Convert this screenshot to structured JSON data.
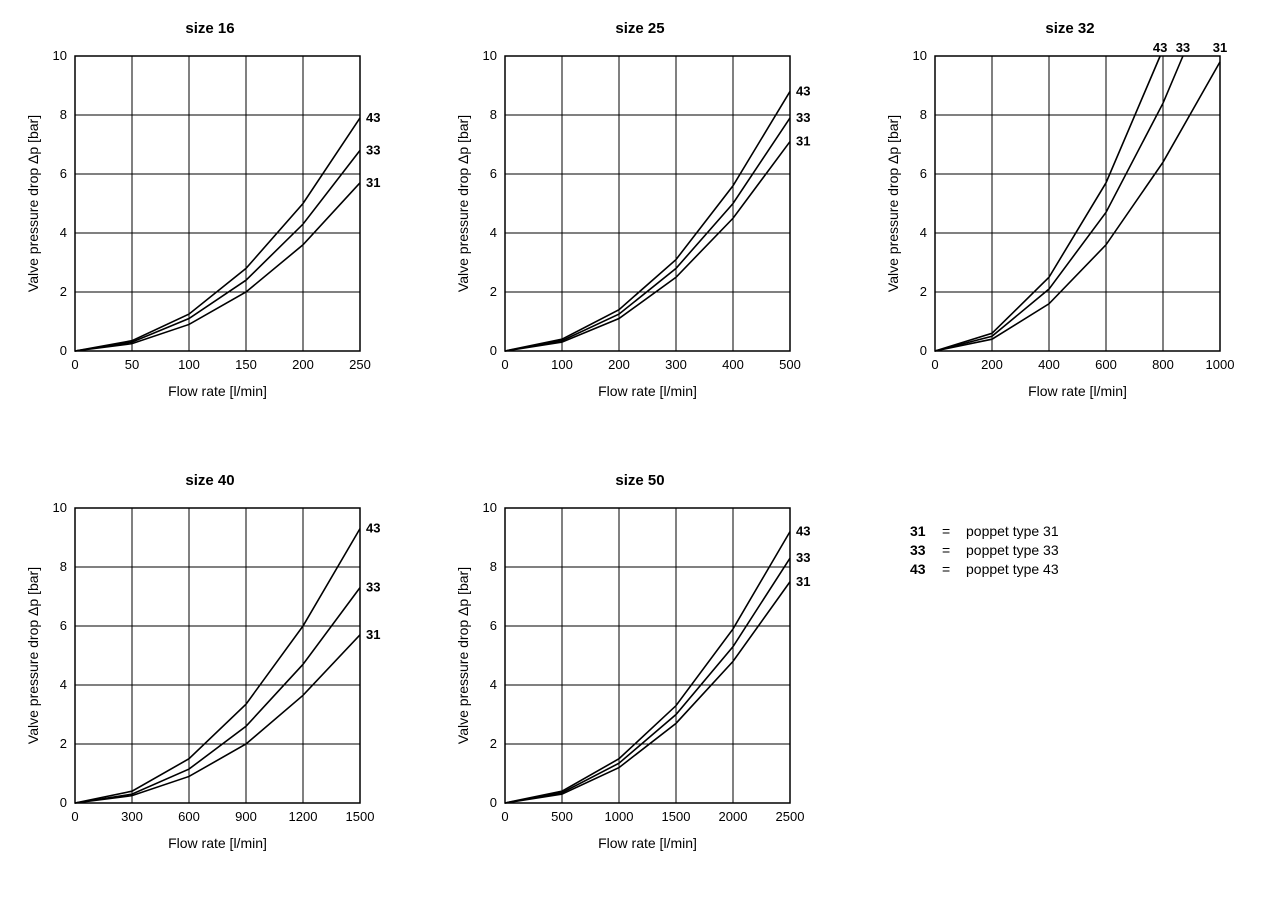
{
  "global": {
    "ylabel": "Valve pressure drop Δp [bar]",
    "xlabel": "Flow rate [l/min]",
    "ylim": [
      0,
      10
    ],
    "ytick_step": 2,
    "background_color": "#ffffff",
    "grid_color": "#000000",
    "curve_color": "#000000",
    "label_fontsize": 14,
    "tick_fontsize": 13,
    "title_fontsize": 15,
    "curve_width": 1.6,
    "series_label_fontweight": "bold"
  },
  "charts": [
    {
      "id": "size16",
      "title": "size 16",
      "xlim": [
        0,
        250
      ],
      "xtick_step": 50,
      "series": [
        {
          "name": "43",
          "label_pos": "end",
          "xmax_y": 7.9,
          "data": [
            [
              0,
              0
            ],
            [
              50,
              0.35
            ],
            [
              100,
              1.25
            ],
            [
              150,
              2.8
            ],
            [
              200,
              5.0
            ],
            [
              250,
              7.9
            ]
          ]
        },
        {
          "name": "33",
          "label_pos": "end",
          "xmax_y": 6.8,
          "data": [
            [
              0,
              0
            ],
            [
              50,
              0.3
            ],
            [
              100,
              1.1
            ],
            [
              150,
              2.4
            ],
            [
              200,
              4.3
            ],
            [
              250,
              6.8
            ]
          ]
        },
        {
          "name": "31",
          "label_pos": "end",
          "xmax_y": 5.7,
          "data": [
            [
              0,
              0
            ],
            [
              50,
              0.25
            ],
            [
              100,
              0.9
            ],
            [
              150,
              2.0
            ],
            [
              200,
              3.6
            ],
            [
              250,
              5.7
            ]
          ]
        }
      ]
    },
    {
      "id": "size25",
      "title": "size 25",
      "xlim": [
        0,
        500
      ],
      "xtick_step": 100,
      "series": [
        {
          "name": "43",
          "label_pos": "end",
          "xmax_y": 8.8,
          "data": [
            [
              0,
              0
            ],
            [
              100,
              0.4
            ],
            [
              200,
              1.4
            ],
            [
              300,
              3.1
            ],
            [
              400,
              5.6
            ],
            [
              500,
              8.8
            ]
          ]
        },
        {
          "name": "33",
          "label_pos": "end",
          "xmax_y": 7.9,
          "data": [
            [
              0,
              0
            ],
            [
              100,
              0.35
            ],
            [
              200,
              1.25
            ],
            [
              300,
              2.8
            ],
            [
              400,
              5.0
            ],
            [
              500,
              7.9
            ]
          ]
        },
        {
          "name": "31",
          "label_pos": "end",
          "xmax_y": 7.1,
          "data": [
            [
              0,
              0
            ],
            [
              100,
              0.3
            ],
            [
              200,
              1.1
            ],
            [
              300,
              2.5
            ],
            [
              400,
              4.5
            ],
            [
              500,
              7.1
            ]
          ]
        }
      ]
    },
    {
      "id": "size32",
      "title": "size 32",
      "xlim": [
        0,
        1000
      ],
      "xtick_step": 200,
      "top_labels": true,
      "series": [
        {
          "name": "43",
          "label_pos": "top",
          "x_at_ymax": 790,
          "data": [
            [
              0,
              0
            ],
            [
              200,
              0.6
            ],
            [
              400,
              2.5
            ],
            [
              600,
              5.7
            ],
            [
              790,
              10
            ]
          ]
        },
        {
          "name": "33",
          "label_pos": "top",
          "x_at_ymax": 870,
          "data": [
            [
              0,
              0
            ],
            [
              200,
              0.5
            ],
            [
              400,
              2.1
            ],
            [
              600,
              4.7
            ],
            [
              800,
              8.4
            ],
            [
              870,
              10
            ]
          ]
        },
        {
          "name": "31",
          "label_pos": "top",
          "x_at_ymax": 1000,
          "data": [
            [
              0,
              0
            ],
            [
              200,
              0.4
            ],
            [
              400,
              1.6
            ],
            [
              600,
              3.6
            ],
            [
              800,
              6.4
            ],
            [
              1000,
              9.8
            ]
          ]
        }
      ]
    },
    {
      "id": "size40",
      "title": "size 40",
      "xlim": [
        0,
        1500
      ],
      "xtick_step": 300,
      "series": [
        {
          "name": "43",
          "label_pos": "end",
          "xmax_y": 9.3,
          "data": [
            [
              0,
              0
            ],
            [
              300,
              0.4
            ],
            [
              600,
              1.5
            ],
            [
              900,
              3.35
            ],
            [
              1200,
              6.0
            ],
            [
              1500,
              9.3
            ]
          ]
        },
        {
          "name": "33",
          "label_pos": "end",
          "xmax_y": 7.3,
          "data": [
            [
              0,
              0
            ],
            [
              300,
              0.3
            ],
            [
              600,
              1.15
            ],
            [
              900,
              2.6
            ],
            [
              1200,
              4.7
            ],
            [
              1500,
              7.3
            ]
          ]
        },
        {
          "name": "31",
          "label_pos": "end",
          "xmax_y": 5.7,
          "data": [
            [
              0,
              0
            ],
            [
              300,
              0.25
            ],
            [
              600,
              0.9
            ],
            [
              900,
              2.0
            ],
            [
              1200,
              3.65
            ],
            [
              1500,
              5.7
            ]
          ]
        }
      ]
    },
    {
      "id": "size50",
      "title": "size 50",
      "xlim": [
        0,
        2500
      ],
      "xtick_step": 500,
      "series": [
        {
          "name": "43",
          "label_pos": "end",
          "xmax_y": 9.2,
          "data": [
            [
              0,
              0
            ],
            [
              500,
              0.4
            ],
            [
              1000,
              1.5
            ],
            [
              1500,
              3.3
            ],
            [
              2000,
              5.9
            ],
            [
              2500,
              9.2
            ]
          ]
        },
        {
          "name": "33",
          "label_pos": "end",
          "xmax_y": 8.3,
          "data": [
            [
              0,
              0
            ],
            [
              500,
              0.35
            ],
            [
              1000,
              1.35
            ],
            [
              1500,
              3.0
            ],
            [
              2000,
              5.3
            ],
            [
              2500,
              8.3
            ]
          ]
        },
        {
          "name": "31",
          "label_pos": "end",
          "xmax_y": 7.5,
          "data": [
            [
              0,
              0
            ],
            [
              500,
              0.3
            ],
            [
              1000,
              1.2
            ],
            [
              1500,
              2.7
            ],
            [
              2000,
              4.8
            ],
            [
              2500,
              7.5
            ]
          ]
        }
      ]
    }
  ],
  "legend": [
    {
      "key": "31",
      "eq": "=",
      "desc": "poppet type 31"
    },
    {
      "key": "33",
      "eq": "=",
      "desc": "poppet type 33"
    },
    {
      "key": "43",
      "eq": "=",
      "desc": "poppet type 43"
    }
  ]
}
